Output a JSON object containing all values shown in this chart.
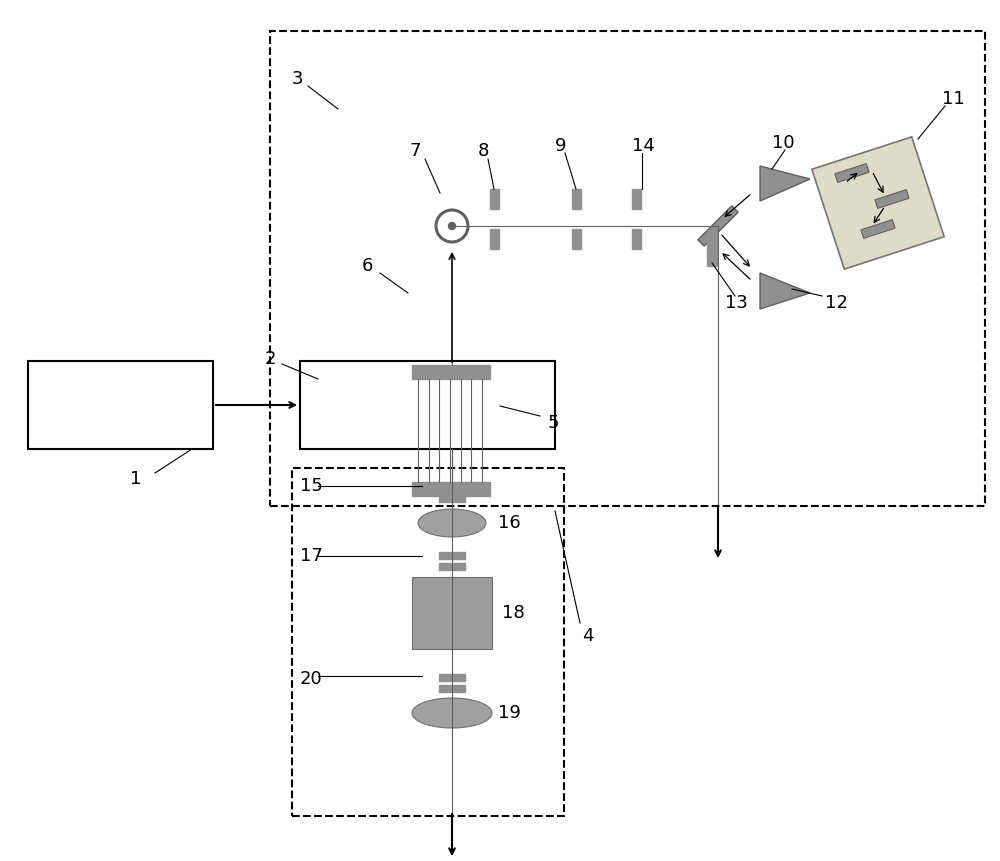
{
  "bg_color": "#ffffff",
  "line_color": "#000000",
  "gray_color": "#808080",
  "light_gray": "#c0c0c0",
  "dark_gray": "#606060",
  "component_color": "#909090"
}
